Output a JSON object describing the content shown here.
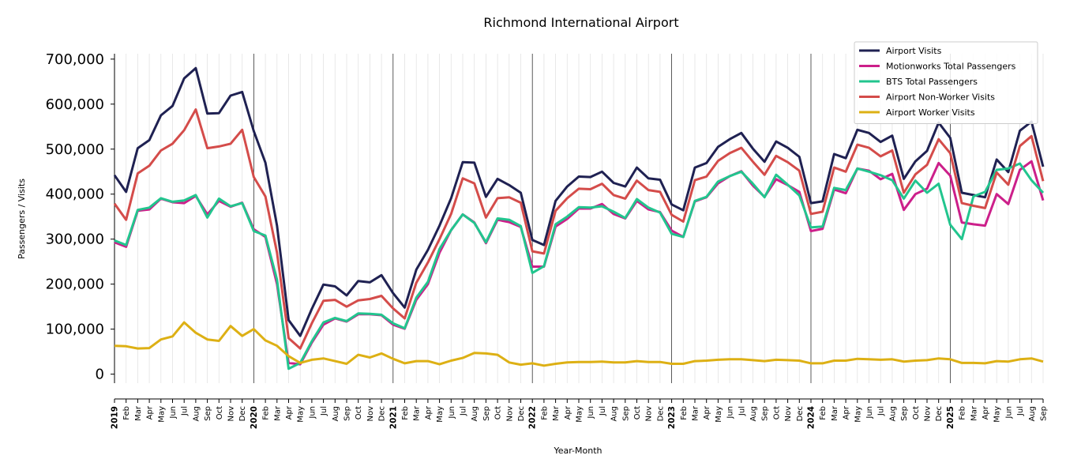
{
  "chart_data": {
    "type": "line",
    "title": "Richmond International Airport",
    "xlabel": "Year-Month",
    "ylabel": "Passengers / Visits",
    "ylim": [
      -20000,
      712000
    ],
    "yticks": [
      0,
      100000,
      200000,
      300000,
      400000,
      500000,
      600000,
      700000
    ],
    "ytick_labels": [
      "0",
      "100,000",
      "200,000",
      "300,000",
      "400,000",
      "500,000",
      "600,000",
      "700,000"
    ],
    "grid": "vertical minor lines per month, vertical major lines per January",
    "legend": "top-right",
    "month_labels": [
      "Jan",
      "Feb",
      "Mar",
      "Apr",
      "May",
      "Jun",
      "Jul",
      "Aug",
      "Sep",
      "Oct",
      "Nov",
      "Dec"
    ],
    "years": [
      "2019",
      "2020",
      "2021",
      "2022",
      "2023",
      "2024",
      "2025"
    ],
    "x_start": "2019-01",
    "x_end": "2025-09",
    "series": [
      {
        "name": "Airport Visits",
        "color": "#1f2152",
        "values": [
          442000,
          405000,
          502000,
          520000,
          575000,
          596000,
          657000,
          680000,
          579000,
          580000,
          619000,
          627000,
          540000,
          470000,
          330000,
          120000,
          85000,
          145000,
          199000,
          195000,
          175000,
          207000,
          204000,
          220000,
          180000,
          148000,
          232000,
          276000,
          330000,
          391000,
          471000,
          470000,
          394000,
          434000,
          420000,
          403000,
          298000,
          287000,
          385000,
          417000,
          439000,
          438000,
          450000,
          425000,
          417000,
          459000,
          435000,
          432000,
          377000,
          364000,
          459000,
          469000,
          505000,
          522000,
          536000,
          501000,
          472000,
          517000,
          503000,
          483000,
          380000,
          384000,
          489000,
          480000,
          543000,
          536000,
          516000,
          530000,
          434000,
          473000,
          496000,
          559000,
          525000,
          403000,
          398000,
          393000,
          477000,
          449000,
          541000,
          561000,
          461000
        ]
      },
      {
        "name": "Motionworks Total Passengers",
        "color": "#cc1f8a",
        "values": [
          293000,
          283000,
          363000,
          366000,
          390000,
          382000,
          380000,
          396000,
          355000,
          385000,
          372000,
          381000,
          322000,
          305000,
          200000,
          25000,
          22000,
          70000,
          110000,
          124000,
          117000,
          133000,
          133000,
          131000,
          110000,
          101000,
          165000,
          200000,
          270000,
          320000,
          355000,
          337000,
          291000,
          343000,
          338000,
          327000,
          239000,
          239000,
          328000,
          345000,
          368000,
          368000,
          378000,
          356000,
          346000,
          385000,
          366000,
          360000,
          319000,
          305000,
          384000,
          393000,
          424000,
          440000,
          451000,
          419000,
          394000,
          433000,
          420000,
          405000,
          318000,
          323000,
          410000,
          402000,
          457000,
          452000,
          433000,
          445000,
          365000,
          400000,
          412000,
          469000,
          441000,
          337000,
          333000,
          330000,
          400000,
          378000,
          454000,
          473000,
          386000
        ]
      },
      {
        "name": "BTS Total Passengers",
        "color": "#22c58e",
        "values": [
          297000,
          287000,
          365000,
          370000,
          391000,
          383000,
          386000,
          398000,
          348000,
          390000,
          373000,
          380000,
          318000,
          308000,
          210000,
          12000,
          25000,
          73000,
          115000,
          125000,
          118000,
          135000,
          134000,
          132000,
          113000,
          102000,
          170000,
          205000,
          278000,
          320000,
          355000,
          336000,
          293000,
          346000,
          343000,
          329000,
          225000,
          240000,
          333000,
          350000,
          371000,
          370000,
          373000,
          361000,
          347000,
          389000,
          370000,
          359000,
          312000,
          305000,
          385000,
          394000,
          428000,
          440000,
          450000,
          423000,
          393000,
          443000,
          421000,
          397000,
          326000,
          328000,
          414000,
          409000,
          457000,
          450000,
          442000,
          431000,
          390000,
          430000,
          403000,
          423000,
          332000,
          300000,
          395000,
          405000,
          454000,
          457000,
          468000,
          431000,
          403000
        ]
      },
      {
        "name": "Airport Non-Worker Visits",
        "color": "#d44c4a",
        "values": [
          379000,
          343000,
          446000,
          463000,
          497000,
          512000,
          542000,
          588000,
          502000,
          506000,
          512000,
          543000,
          438000,
          395000,
          270000,
          80000,
          57000,
          113000,
          163000,
          165000,
          150000,
          164000,
          167000,
          174000,
          146000,
          124000,
          203000,
          248000,
          300000,
          356000,
          435000,
          424000,
          348000,
          391000,
          393000,
          381000,
          273000,
          268000,
          363000,
          391000,
          412000,
          411000,
          423000,
          398000,
          390000,
          430000,
          409000,
          405000,
          354000,
          339000,
          431000,
          439000,
          474000,
          491000,
          503000,
          472000,
          443000,
          485000,
          471000,
          452000,
          356000,
          361000,
          459000,
          450000,
          510000,
          503000,
          484000,
          497000,
          403000,
          444000,
          465000,
          522000,
          491000,
          380000,
          374000,
          369000,
          448000,
          421000,
          507000,
          529000,
          429000
        ]
      },
      {
        "name": "Airport Worker Visits",
        "color": "#ddb014",
        "values": [
          63000,
          62000,
          57000,
          58000,
          77000,
          84000,
          115000,
          92000,
          77000,
          74000,
          107000,
          85000,
          100000,
          75000,
          63000,
          40000,
          25000,
          32000,
          35000,
          29000,
          23000,
          43000,
          37000,
          46000,
          34000,
          24000,
          29000,
          29000,
          22000,
          30000,
          36000,
          47000,
          46000,
          43000,
          26000,
          21000,
          24000,
          19000,
          23000,
          26000,
          27000,
          27000,
          28000,
          26000,
          26000,
          29000,
          27000,
          27000,
          23000,
          23000,
          29000,
          30000,
          32000,
          33000,
          33000,
          31000,
          29000,
          32000,
          31000,
          30000,
          24000,
          24000,
          30000,
          30000,
          34000,
          33000,
          32000,
          33000,
          28000,
          30000,
          31000,
          35000,
          33000,
          25000,
          25000,
          24000,
          29000,
          28000,
          33000,
          35000,
          28000
        ]
      }
    ]
  }
}
